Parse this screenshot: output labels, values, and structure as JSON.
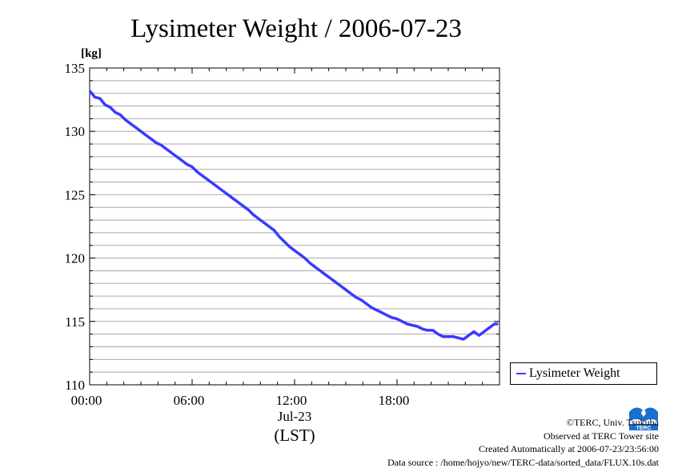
{
  "chart_data": {
    "type": "line",
    "title": "Lysimeter Weight / 2006-07-23",
    "ylabel": "[kg]",
    "xlabel": "(LST)",
    "date_label": "Jul-23",
    "ylim": [
      110,
      135
    ],
    "xlim": [
      0,
      24
    ],
    "y_ticks": [
      "110",
      "115",
      "120",
      "125",
      "130",
      "135"
    ],
    "x_ticks": [
      "00:00",
      "06:00",
      "12:00",
      "18:00"
    ],
    "grid": true,
    "legend_position": "right",
    "series": [
      {
        "name": "Lysimeter Weight",
        "color": "#3a3aff",
        "x": [
          0,
          0.3,
          0.6,
          0.9,
          1.2,
          1.5,
          1.8,
          2.1,
          2.4,
          2.7,
          3.0,
          3.3,
          3.6,
          3.9,
          4.2,
          4.5,
          4.8,
          5.1,
          5.4,
          5.7,
          6.0,
          6.3,
          6.6,
          6.9,
          7.2,
          7.5,
          7.8,
          8.1,
          8.4,
          8.7,
          9.0,
          9.3,
          9.6,
          9.9,
          10.2,
          10.5,
          10.8,
          11.1,
          11.4,
          11.7,
          12.0,
          12.3,
          12.6,
          12.9,
          13.2,
          13.5,
          13.8,
          14.1,
          14.4,
          14.7,
          15.0,
          15.3,
          15.6,
          15.9,
          16.2,
          16.5,
          16.8,
          17.1,
          17.4,
          17.7,
          18.0,
          18.3,
          18.6,
          18.9,
          19.2,
          19.5,
          19.8,
          20.1,
          20.4,
          20.7,
          21.0,
          21.3,
          21.6,
          21.9,
          22.2,
          22.5,
          22.8,
          23.1,
          23.4,
          23.7,
          23.9
        ],
        "y": [
          133.2,
          132.7,
          132.6,
          132.1,
          131.9,
          131.5,
          131.3,
          130.9,
          130.6,
          130.3,
          130.0,
          129.7,
          129.4,
          129.1,
          128.9,
          128.6,
          128.3,
          128.0,
          127.7,
          127.4,
          127.2,
          126.8,
          126.5,
          126.2,
          125.9,
          125.6,
          125.3,
          125.0,
          124.7,
          124.4,
          124.1,
          123.8,
          123.4,
          123.1,
          122.8,
          122.5,
          122.2,
          121.7,
          121.3,
          120.9,
          120.6,
          120.3,
          120.0,
          119.6,
          119.3,
          119.0,
          118.7,
          118.4,
          118.1,
          117.8,
          117.5,
          117.2,
          116.9,
          116.7,
          116.4,
          116.1,
          115.9,
          115.7,
          115.5,
          115.3,
          115.2,
          115.0,
          114.8,
          114.7,
          114.6,
          114.4,
          114.3,
          114.3,
          114.0,
          113.8,
          113.8,
          113.8,
          113.7,
          113.6,
          113.9,
          114.2,
          113.9,
          114.2,
          114.5,
          114.8,
          114.8
        ]
      }
    ]
  },
  "footer": {
    "copyright": "©TERC, Univ. Tsukuba",
    "observed": "Observed at TERC Tower site",
    "created": "Created Automatically at 2006-07-23/23:56:00",
    "source": "Data source : /home/hojyo/new/TERC-data/sorted_data/FLUX.10s.dat"
  },
  "logo": {
    "text": "TERC",
    "color": "#1a6fd0"
  }
}
